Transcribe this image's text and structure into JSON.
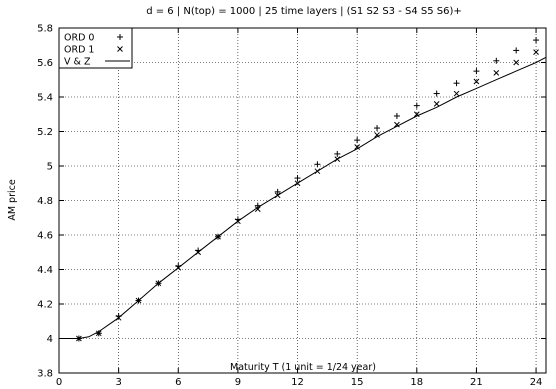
{
  "chart_data": {
    "type": "scatter",
    "title": "d = 6 | N(top) = 1000 | 25 time layers | (S1 S2 S3 - S4 S5 S6)+",
    "xlabel": "Maturity T (1 unit = 1/24 year)",
    "ylabel": "AM price",
    "xlim": [
      0,
      24.5
    ],
    "ylim": [
      3.8,
      5.8
    ],
    "x_ticks": [
      0,
      3,
      6,
      9,
      12,
      15,
      18,
      21,
      24
    ],
    "y_ticks": [
      3.8,
      4,
      4.2,
      4.4,
      4.6,
      4.8,
      5,
      5.2,
      5.4,
      5.6,
      5.8
    ],
    "y_tick_labels": [
      "3.8",
      "4",
      "4.2",
      "4.4",
      "4.6",
      "4.8",
      "5",
      "5.2",
      "5.4",
      "5.6",
      "5.8"
    ],
    "grid": true,
    "legend_position": "top-left",
    "series": [
      {
        "name": "ORD 0",
        "marker": "plus",
        "x": [
          1,
          2,
          3,
          4,
          5,
          6,
          7,
          8,
          9,
          10,
          11,
          12,
          13,
          14,
          15,
          16,
          17,
          18,
          19,
          20,
          21,
          22,
          23,
          24
        ],
        "y": [
          4.0,
          4.03,
          4.13,
          4.22,
          4.32,
          4.42,
          4.51,
          4.59,
          4.69,
          4.77,
          4.85,
          4.93,
          5.01,
          5.07,
          5.15,
          5.22,
          5.29,
          5.35,
          5.42,
          5.48,
          5.55,
          5.61,
          5.67,
          5.73
        ]
      },
      {
        "name": "ORD 1",
        "marker": "cross",
        "x": [
          1,
          2,
          3,
          4,
          5,
          6,
          7,
          8,
          9,
          10,
          11,
          12,
          13,
          14,
          15,
          16,
          17,
          18,
          19,
          20,
          21,
          22,
          23,
          24
        ],
        "y": [
          4.0,
          4.03,
          4.12,
          4.22,
          4.32,
          4.41,
          4.5,
          4.59,
          4.68,
          4.75,
          4.83,
          4.9,
          4.97,
          5.04,
          5.11,
          5.18,
          5.24,
          5.3,
          5.36,
          5.42,
          5.49,
          5.54,
          5.6,
          5.66
        ]
      },
      {
        "name": "V & Z",
        "style": "line",
        "x": [
          0,
          1,
          1.5,
          2,
          2.5,
          3,
          4,
          5,
          6,
          7,
          8,
          9,
          10,
          11,
          12,
          13,
          14,
          15,
          16,
          17,
          18,
          19,
          20,
          21,
          22,
          23,
          24,
          24.5
        ],
        "y": [
          4.0,
          4.0,
          4.01,
          4.04,
          4.08,
          4.12,
          4.22,
          4.32,
          4.41,
          4.5,
          4.59,
          4.68,
          4.76,
          4.83,
          4.9,
          4.97,
          5.04,
          5.1,
          5.17,
          5.23,
          5.29,
          5.34,
          5.4,
          5.45,
          5.5,
          5.55,
          5.6,
          5.63
        ]
      }
    ],
    "colors": {
      "axis": "#000000",
      "grid": "#000000",
      "marks": "#000000"
    }
  }
}
